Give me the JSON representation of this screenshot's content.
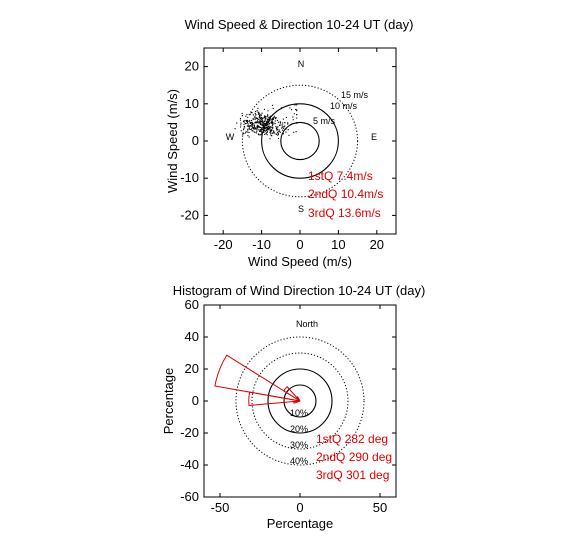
{
  "chart_data": [
    {
      "type": "scatter",
      "title": "Wind Speed & Direction 10-24 UT (day)",
      "xlabel": "Wind Speed (m/s)",
      "ylabel": "Wind Speed (m/s)",
      "xlim": [
        -25,
        25
      ],
      "ylim": [
        -25,
        25
      ],
      "xticks": [
        -20,
        -10,
        0,
        10,
        20
      ],
      "yticks": [
        20,
        10,
        0,
        -10,
        -20
      ],
      "grid": false,
      "compass": {
        "n": "N",
        "e": "E",
        "s": "S",
        "w": "W"
      },
      "rings": [
        {
          "radius": 5,
          "label": "5 m/s",
          "style": "solid"
        },
        {
          "radius": 10,
          "label": "10 m/s",
          "style": "solid"
        },
        {
          "radius": 15,
          "label": "15 m/s",
          "style": "dotted"
        }
      ],
      "scatter_cloud": {
        "center": [
          -10,
          4.5
        ],
        "spread": [
          4.5,
          2.8
        ],
        "count": 420
      },
      "annotations": [
        "1stQ 7.4m/s",
        "2ndQ 10.4m/s",
        "3rdQ 13.6m/s"
      ]
    },
    {
      "type": "polar-histogram",
      "title": "Histogram of Wind Direction 10-24 UT (day)",
      "xlabel": "Percentage",
      "ylabel": "Percentage",
      "xlim": [
        -60,
        60
      ],
      "ylim": [
        -60,
        60
      ],
      "xticks": [
        -50,
        0,
        50
      ],
      "yticks": [
        60,
        40,
        20,
        0,
        -20,
        -40,
        -60
      ],
      "grid": false,
      "north_label": "North",
      "rings": [
        {
          "radius": 10,
          "label": "10%",
          "style": "solid"
        },
        {
          "radius": 20,
          "label": "20%",
          "style": "solid"
        },
        {
          "radius": 30,
          "label": "30%",
          "style": "dotted"
        },
        {
          "radius": 40,
          "label": "40%",
          "style": "dotted"
        }
      ],
      "bins": [
        {
          "from_deg": 250,
          "to_deg": 265,
          "percent": 4
        },
        {
          "from_deg": 265,
          "to_deg": 280,
          "percent": 32
        },
        {
          "from_deg": 280,
          "to_deg": 302,
          "percent": 54
        },
        {
          "from_deg": 302,
          "to_deg": 318,
          "percent": 12
        },
        {
          "from_deg": 318,
          "to_deg": 330,
          "percent": 3
        }
      ],
      "annotations": [
        "1stQ 282 deg",
        "2ndQ 290 deg",
        "3rdQ 301 deg"
      ]
    }
  ]
}
